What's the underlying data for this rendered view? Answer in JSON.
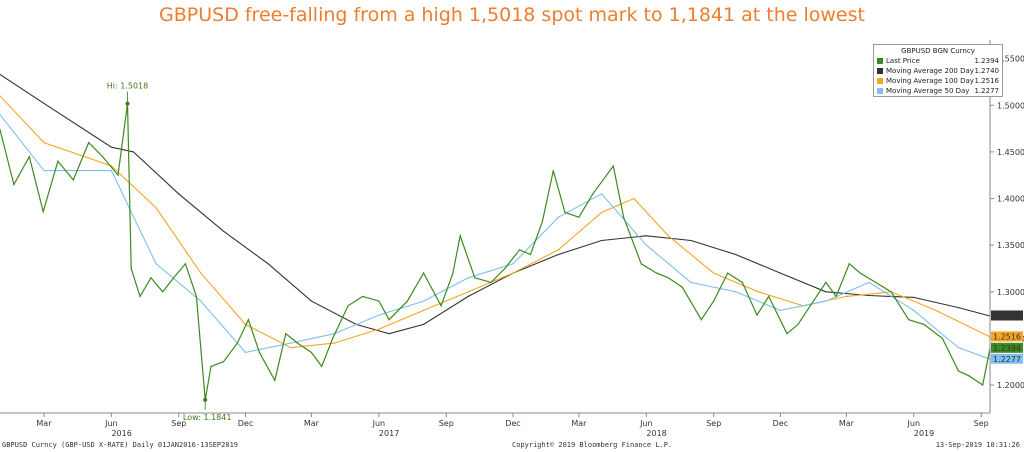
{
  "title": "GBPUSD free-falling from a high 1,5018 spot mark to 1,1841 at the lowest",
  "footer": {
    "left": "GBPUSD Curncy (GBP-USD X-RATE) Daily 01JAN2016-13SEP2019",
    "center": "Copyright© 2019 Bloomberg Finance L.P.",
    "right": "13-Sep-2019 10:31:26"
  },
  "legend": {
    "title": "GBPUSD BGN Curncy",
    "items": [
      {
        "label": "Last Price",
        "value": "1.2394",
        "color": "#3d8a1f"
      },
      {
        "label": "Moving Average 200 Day",
        "value": "1.2740",
        "color": "#333333"
      },
      {
        "label": "Moving Average 100 Day",
        "value": "1.2516",
        "color": "#f5a623"
      },
      {
        "label": "Moving Average 50 Day",
        "value": "1.2277",
        "color": "#7fbfef"
      }
    ]
  },
  "annotations": {
    "high": "Hi: 1.5018",
    "low": "Low: 1.1841"
  },
  "chart_data": {
    "type": "line",
    "title": "GBPUSD free-falling from a high 1,5018 spot mark to 1,1841 at the lowest",
    "xlabel": "",
    "ylabel": "",
    "ylim": [
      1.17,
      1.57
    ],
    "xlim": [
      "2016-01-01",
      "2019-09-13"
    ],
    "grid": false,
    "legend_position": "top-right",
    "y_ticks": [
      "1.2000",
      "1.2500",
      "1.3000",
      "1.3500",
      "1.4000",
      "1.4500",
      "1.5000",
      "1.5500"
    ],
    "x_ticks": [
      {
        "label": "Mar",
        "date": "2016-03-01"
      },
      {
        "label": "Jun",
        "date": "2016-06-01"
      },
      {
        "label": "Sep",
        "date": "2016-09-01"
      },
      {
        "label": "Dec",
        "date": "2016-12-01"
      },
      {
        "label": "Mar",
        "date": "2017-03-01"
      },
      {
        "label": "Jun",
        "date": "2017-06-01"
      },
      {
        "label": "Sep",
        "date": "2017-09-01"
      },
      {
        "label": "Dec",
        "date": "2017-12-01"
      },
      {
        "label": "Mar",
        "date": "2018-03-01"
      },
      {
        "label": "Jun",
        "date": "2018-06-01"
      },
      {
        "label": "Sep",
        "date": "2018-09-01"
      },
      {
        "label": "Dec",
        "date": "2018-12-01"
      },
      {
        "label": "Mar",
        "date": "2019-03-01"
      },
      {
        "label": "Jun",
        "date": "2019-06-01"
      },
      {
        "label": "Sep",
        "date": "2019-09-01"
      }
    ],
    "year_labels": [
      {
        "label": "2016",
        "date": "2016-06-15"
      },
      {
        "label": "2017",
        "date": "2017-06-15"
      },
      {
        "label": "2018",
        "date": "2018-06-15"
      },
      {
        "label": "2019",
        "date": "2019-06-15"
      }
    ],
    "price_labels": [
      {
        "text": "1.2740",
        "value": 1.274,
        "color": "#333333"
      },
      {
        "text": "1.2516",
        "value": 1.2516,
        "color": "#f5a623"
      },
      {
        "text": "1.2394",
        "value": 1.2394,
        "color": "#3d8a1f"
      },
      {
        "text": "1.2277",
        "value": 1.2277,
        "color": "#7fbfef"
      }
    ],
    "high_point": {
      "date": "2016-06-23",
      "value": 1.5018
    },
    "low_point": {
      "date": "2016-10-07",
      "value": 1.1841
    },
    "series": [
      {
        "name": "Last Price",
        "color": "#3d8a1f",
        "points": [
          [
            "2016-01-01",
            1.474
          ],
          [
            "2016-01-20",
            1.415
          ],
          [
            "2016-02-10",
            1.445
          ],
          [
            "2016-02-29",
            1.386
          ],
          [
            "2016-03-20",
            1.44
          ],
          [
            "2016-04-10",
            1.42
          ],
          [
            "2016-05-01",
            1.46
          ],
          [
            "2016-05-20",
            1.445
          ],
          [
            "2016-06-10",
            1.425
          ],
          [
            "2016-06-23",
            1.5018
          ],
          [
            "2016-06-28",
            1.325
          ],
          [
            "2016-07-10",
            1.295
          ],
          [
            "2016-07-25",
            1.315
          ],
          [
            "2016-08-10",
            1.3
          ],
          [
            "2016-08-25",
            1.315
          ],
          [
            "2016-09-10",
            1.33
          ],
          [
            "2016-09-25",
            1.295
          ],
          [
            "2016-10-07",
            1.1841
          ],
          [
            "2016-10-15",
            1.22
          ],
          [
            "2016-11-01",
            1.225
          ],
          [
            "2016-11-20",
            1.245
          ],
          [
            "2016-12-05",
            1.27
          ],
          [
            "2016-12-20",
            1.235
          ],
          [
            "2017-01-10",
            1.205
          ],
          [
            "2017-01-25",
            1.255
          ],
          [
            "2017-02-10",
            1.245
          ],
          [
            "2017-03-01",
            1.235
          ],
          [
            "2017-03-15",
            1.22
          ],
          [
            "2017-03-30",
            1.25
          ],
          [
            "2017-04-20",
            1.285
          ],
          [
            "2017-05-10",
            1.295
          ],
          [
            "2017-06-01",
            1.29
          ],
          [
            "2017-06-15",
            1.27
          ],
          [
            "2017-07-10",
            1.29
          ],
          [
            "2017-08-01",
            1.32
          ],
          [
            "2017-08-25",
            1.285
          ],
          [
            "2017-09-10",
            1.32
          ],
          [
            "2017-09-20",
            1.36
          ],
          [
            "2017-10-10",
            1.315
          ],
          [
            "2017-11-01",
            1.31
          ],
          [
            "2017-11-20",
            1.325
          ],
          [
            "2017-12-10",
            1.345
          ],
          [
            "2017-12-25",
            1.34
          ],
          [
            "2018-01-10",
            1.375
          ],
          [
            "2018-01-25",
            1.43
          ],
          [
            "2018-02-10",
            1.385
          ],
          [
            "2018-03-01",
            1.38
          ],
          [
            "2018-03-20",
            1.405
          ],
          [
            "2018-04-17",
            1.435
          ],
          [
            "2018-05-01",
            1.38
          ],
          [
            "2018-05-25",
            1.33
          ],
          [
            "2018-06-15",
            1.32
          ],
          [
            "2018-07-01",
            1.315
          ],
          [
            "2018-07-20",
            1.305
          ],
          [
            "2018-08-15",
            1.27
          ],
          [
            "2018-09-01",
            1.29
          ],
          [
            "2018-09-20",
            1.32
          ],
          [
            "2018-10-10",
            1.31
          ],
          [
            "2018-10-30",
            1.275
          ],
          [
            "2018-11-15",
            1.295
          ],
          [
            "2018-12-10",
            1.255
          ],
          [
            "2018-12-25",
            1.265
          ],
          [
            "2019-01-15",
            1.29
          ],
          [
            "2019-02-01",
            1.31
          ],
          [
            "2019-02-15",
            1.295
          ],
          [
            "2019-03-05",
            1.33
          ],
          [
            "2019-03-20",
            1.32
          ],
          [
            "2019-04-10",
            1.31
          ],
          [
            "2019-05-01",
            1.3
          ],
          [
            "2019-05-25",
            1.27
          ],
          [
            "2019-06-15",
            1.265
          ],
          [
            "2019-07-10",
            1.25
          ],
          [
            "2019-08-01",
            1.215
          ],
          [
            "2019-08-15",
            1.21
          ],
          [
            "2019-09-03",
            1.2
          ],
          [
            "2019-09-13",
            1.2394
          ]
        ]
      },
      {
        "name": "Moving Average 200 Day",
        "color": "#333333",
        "points": [
          [
            "2016-01-01",
            1.533
          ],
          [
            "2016-03-01",
            1.502
          ],
          [
            "2016-06-01",
            1.455
          ],
          [
            "2016-07-01",
            1.45
          ],
          [
            "2016-09-01",
            1.405
          ],
          [
            "2016-11-01",
            1.365
          ],
          [
            "2017-01-01",
            1.33
          ],
          [
            "2017-03-01",
            1.29
          ],
          [
            "2017-05-01",
            1.265
          ],
          [
            "2017-06-15",
            1.255
          ],
          [
            "2017-08-01",
            1.265
          ],
          [
            "2017-10-01",
            1.295
          ],
          [
            "2017-12-01",
            1.32
          ],
          [
            "2018-02-01",
            1.34
          ],
          [
            "2018-04-01",
            1.355
          ],
          [
            "2018-06-01",
            1.36
          ],
          [
            "2018-08-01",
            1.355
          ],
          [
            "2018-10-01",
            1.34
          ],
          [
            "2018-12-01",
            1.32
          ],
          [
            "2019-02-01",
            1.3
          ],
          [
            "2019-04-01",
            1.296
          ],
          [
            "2019-06-01",
            1.294
          ],
          [
            "2019-08-01",
            1.283
          ],
          [
            "2019-09-13",
            1.274
          ]
        ]
      },
      {
        "name": "Moving Average 100 Day",
        "color": "#f5a623",
        "points": [
          [
            "2016-01-01",
            1.51
          ],
          [
            "2016-03-01",
            1.46
          ],
          [
            "2016-06-01",
            1.435
          ],
          [
            "2016-08-01",
            1.39
          ],
          [
            "2016-10-01",
            1.32
          ],
          [
            "2016-12-01",
            1.265
          ],
          [
            "2017-02-01",
            1.24
          ],
          [
            "2017-04-01",
            1.245
          ],
          [
            "2017-06-01",
            1.26
          ],
          [
            "2017-08-01",
            1.28
          ],
          [
            "2017-10-01",
            1.3
          ],
          [
            "2017-12-01",
            1.32
          ],
          [
            "2018-02-01",
            1.345
          ],
          [
            "2018-04-01",
            1.385
          ],
          [
            "2018-05-15",
            1.4
          ],
          [
            "2018-07-01",
            1.36
          ],
          [
            "2018-09-01",
            1.32
          ],
          [
            "2018-11-01",
            1.3
          ],
          [
            "2019-01-01",
            1.285
          ],
          [
            "2019-03-01",
            1.295
          ],
          [
            "2019-05-01",
            1.3
          ],
          [
            "2019-07-01",
            1.28
          ],
          [
            "2019-09-13",
            1.2516
          ]
        ]
      },
      {
        "name": "Moving Average 50 Day",
        "color": "#7fbfef",
        "points": [
          [
            "2016-01-01",
            1.49
          ],
          [
            "2016-03-01",
            1.43
          ],
          [
            "2016-06-01",
            1.43
          ],
          [
            "2016-08-01",
            1.33
          ],
          [
            "2016-10-01",
            1.29
          ],
          [
            "2016-12-01",
            1.235
          ],
          [
            "2017-02-01",
            1.245
          ],
          [
            "2017-04-01",
            1.255
          ],
          [
            "2017-06-01",
            1.275
          ],
          [
            "2017-08-01",
            1.29
          ],
          [
            "2017-10-01",
            1.315
          ],
          [
            "2017-12-01",
            1.33
          ],
          [
            "2018-02-01",
            1.38
          ],
          [
            "2018-04-01",
            1.405
          ],
          [
            "2018-06-01",
            1.35
          ],
          [
            "2018-08-01",
            1.31
          ],
          [
            "2018-10-01",
            1.3
          ],
          [
            "2018-12-01",
            1.28
          ],
          [
            "2019-02-01",
            1.29
          ],
          [
            "2019-04-01",
            1.31
          ],
          [
            "2019-06-01",
            1.28
          ],
          [
            "2019-08-01",
            1.24
          ],
          [
            "2019-09-13",
            1.2277
          ]
        ]
      }
    ]
  }
}
